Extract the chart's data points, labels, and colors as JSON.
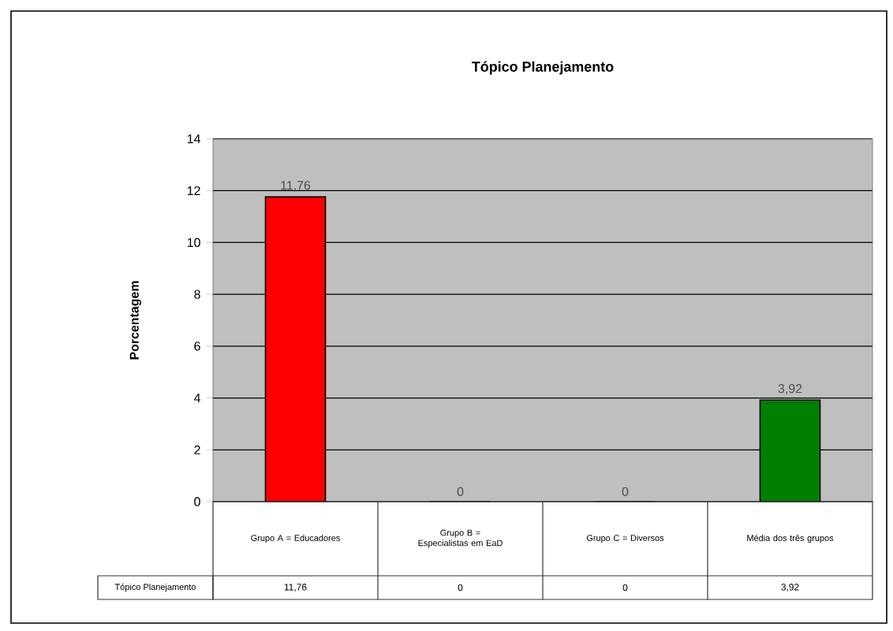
{
  "chart_data": {
    "type": "bar",
    "title": "Tópico Planejamento",
    "ylabel": "Porcentagem",
    "categories": [
      "Grupo A = Educadores",
      "Grupo B = Especialistas em EaD",
      "Grupo C = Diversos",
      "Média dos três grupos"
    ],
    "series": [
      {
        "name": "Tópico Planejamento",
        "values": [
          11.76,
          0,
          0,
          3.92
        ],
        "colors": [
          "#ff0000",
          "#808080",
          "#808080",
          "#008000"
        ],
        "value_labels": [
          "11,76",
          "0",
          "0",
          "3,92"
        ]
      }
    ],
    "ylim": [
      0,
      14
    ],
    "yticks": [
      0,
      2,
      4,
      6,
      8,
      10,
      12,
      14
    ],
    "grid": "y"
  }
}
